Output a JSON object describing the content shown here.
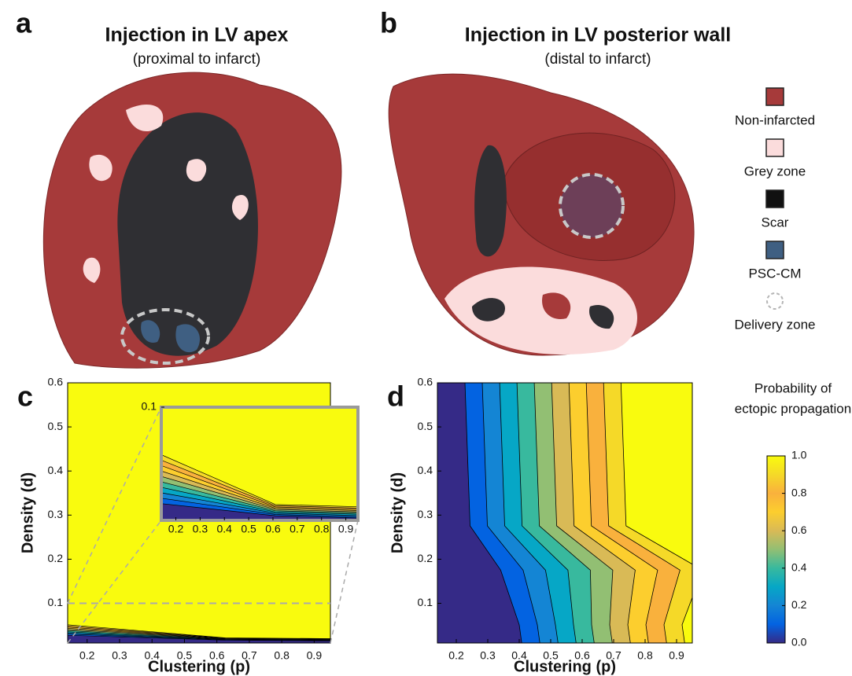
{
  "panels": [
    {
      "label": "a",
      "title": "Injection in LV apex",
      "subtitle": "(proximal to infarct)"
    },
    {
      "label": "b",
      "title": "Injection in LV posterior wall",
      "subtitle": "(distal to infarct)"
    }
  ],
  "legend": [
    {
      "name": "Non-infarcted",
      "color": "#a63a3a"
    },
    {
      "name": "Grey zone",
      "color": "#fbdcdc"
    },
    {
      "name": "Scar",
      "color": "#111111"
    },
    {
      "name": "PSC-CM",
      "color": "#3f5f82"
    },
    {
      "name": "Delivery zone",
      "color": "#b5b5b5"
    }
  ],
  "chart_data": [
    {
      "type": "contour",
      "label": "c",
      "xlabel": "Clustering (p)",
      "ylabel": "Density (d)",
      "xlim": [
        0.14,
        0.95
      ],
      "ylim": [
        0.01,
        0.6
      ],
      "xticks": [
        0.2,
        0.3,
        0.4,
        0.5,
        0.6,
        0.7,
        0.8,
        0.9
      ],
      "yticks": [
        0.1,
        0.2,
        0.3,
        0.4,
        0.5,
        0.6
      ],
      "inset": {
        "xlim": [
          0.14,
          0.95
        ],
        "ylim": [
          0.01,
          0.1
        ],
        "xticks": [
          0.2,
          0.3,
          0.4,
          0.5,
          0.6,
          0.7,
          0.8,
          0.9
        ],
        "yticks": [
          0.1
        ]
      }
    },
    {
      "type": "contour",
      "label": "d",
      "xlabel": "Clustering (p)",
      "ylabel": "Density (d)",
      "xlim": [
        0.14,
        0.95
      ],
      "ylim": [
        0.01,
        0.6
      ],
      "xticks": [
        0.2,
        0.3,
        0.4,
        0.5,
        0.6,
        0.7,
        0.8,
        0.9
      ],
      "yticks": [
        0.1,
        0.2,
        0.3,
        0.4,
        0.5,
        0.6
      ]
    }
  ],
  "colorbar": {
    "title": [
      "Probability of",
      "ectopic propagation"
    ],
    "lim": [
      0,
      1
    ],
    "ticks": [
      {
        "value": 0,
        "label": "0.0"
      },
      0.2,
      0.4,
      0.6,
      0.8,
      {
        "value": 1,
        "label": "1.0"
      }
    ]
  }
}
